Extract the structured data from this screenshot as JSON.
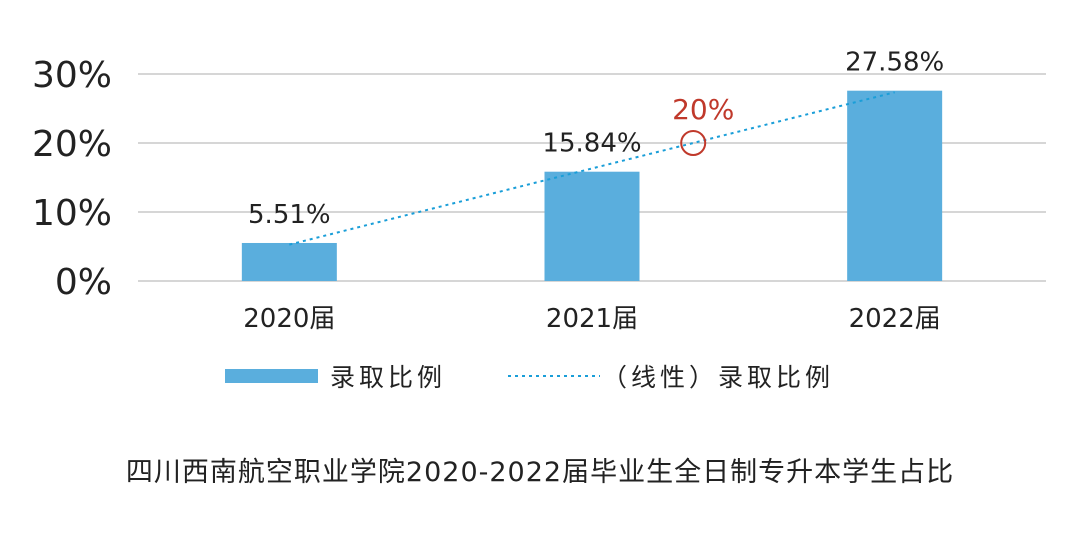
{
  "chart_data": {
    "type": "bar",
    "categories": [
      "2020届",
      "2021届",
      "2022届"
    ],
    "series": [
      {
        "name": "录取比例",
        "type": "bar",
        "values": [
          5.51,
          15.84,
          27.58
        ],
        "color": "#5aaedd"
      }
    ],
    "trendline": {
      "name": "（线性）录取比例",
      "style": "dotted",
      "color": "#1a9ed8"
    },
    "data_labels": [
      "5.51%",
      "15.84%",
      "27.58%"
    ],
    "yticks": [
      "0%",
      "10%",
      "20%",
      "30%"
    ],
    "ylim": [
      0,
      30
    ],
    "grid": true,
    "legend_position": "bottom",
    "annotation": {
      "text": "20%",
      "value": 20,
      "color": "#c0392b"
    }
  },
  "caption": "四川西南航空职业学院2020-2022届毕业生全日制专升本学生占比"
}
